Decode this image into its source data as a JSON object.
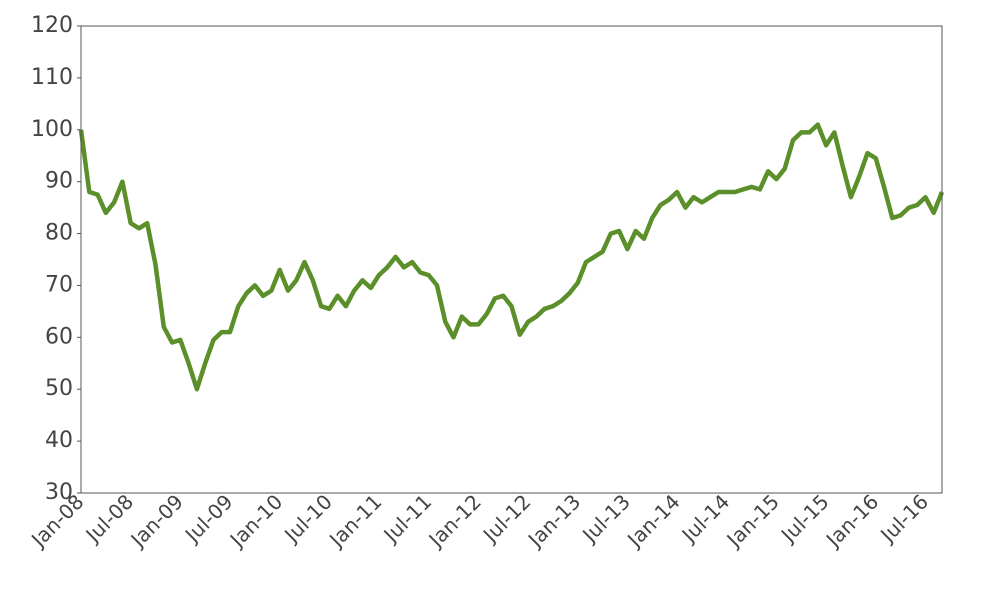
{
  "chart_data": {
    "type": "line",
    "categories": [
      "Jan-08",
      null,
      null,
      null,
      null,
      null,
      "Jul-08",
      null,
      null,
      null,
      null,
      null,
      "Jan-09",
      null,
      null,
      null,
      null,
      null,
      "Jul-09",
      null,
      null,
      null,
      null,
      null,
      "Jan-10",
      null,
      null,
      null,
      null,
      null,
      "Jul-10",
      null,
      null,
      null,
      null,
      null,
      "Jan-11",
      null,
      null,
      null,
      null,
      null,
      "Jul-11",
      null,
      null,
      null,
      null,
      null,
      "Jan-12",
      null,
      null,
      null,
      null,
      null,
      "Jul-12",
      null,
      null,
      null,
      null,
      null,
      "Jan-13",
      null,
      null,
      null,
      null,
      null,
      "Jul-13",
      null,
      null,
      null,
      null,
      null,
      "Jan-14",
      null,
      null,
      null,
      null,
      null,
      "Jul-14",
      null,
      null,
      null,
      null,
      null,
      "Jan-15",
      null,
      null,
      null,
      null,
      null,
      "Jul-15",
      null,
      null,
      null,
      null,
      null,
      "Jan-16",
      null,
      null,
      null,
      null,
      null,
      "Jul-16",
      null,
      null
    ],
    "series": [
      {
        "color": "#5a8f29",
        "values": [
          100,
          88,
          87.5,
          84,
          86,
          90,
          82,
          81,
          82,
          74,
          62,
          59,
          59.5,
          55,
          50,
          55,
          59.5,
          61,
          61,
          66,
          68.5,
          70,
          68,
          69,
          73,
          69,
          71,
          74.5,
          71,
          66,
          65.5,
          68,
          66,
          69,
          71,
          69.5,
          72,
          73.5,
          75.5,
          73.5,
          74.5,
          72.5,
          72,
          70,
          63,
          60,
          64,
          62.5,
          62.5,
          64.5,
          67.5,
          68,
          66,
          60.5,
          63,
          64,
          65.5,
          66,
          67,
          68.5,
          70.5,
          74.5,
          75.5,
          76.5,
          80,
          80.5,
          77,
          80.5,
          79,
          83,
          85.5,
          86.5,
          88,
          85,
          87,
          86,
          87,
          88,
          88,
          88,
          88.5,
          89,
          88.5,
          92,
          90.5,
          92.5,
          98,
          99.5,
          99.5,
          101,
          97,
          99.5,
          93,
          87,
          91,
          95.5,
          94.5,
          89,
          83,
          83.5,
          85,
          85.5,
          87,
          84,
          88
        ]
      }
    ],
    "ylim": [
      30,
      120
    ],
    "yticks": [
      30,
      40,
      50,
      60,
      70,
      80,
      90,
      100,
      110,
      120
    ]
  }
}
